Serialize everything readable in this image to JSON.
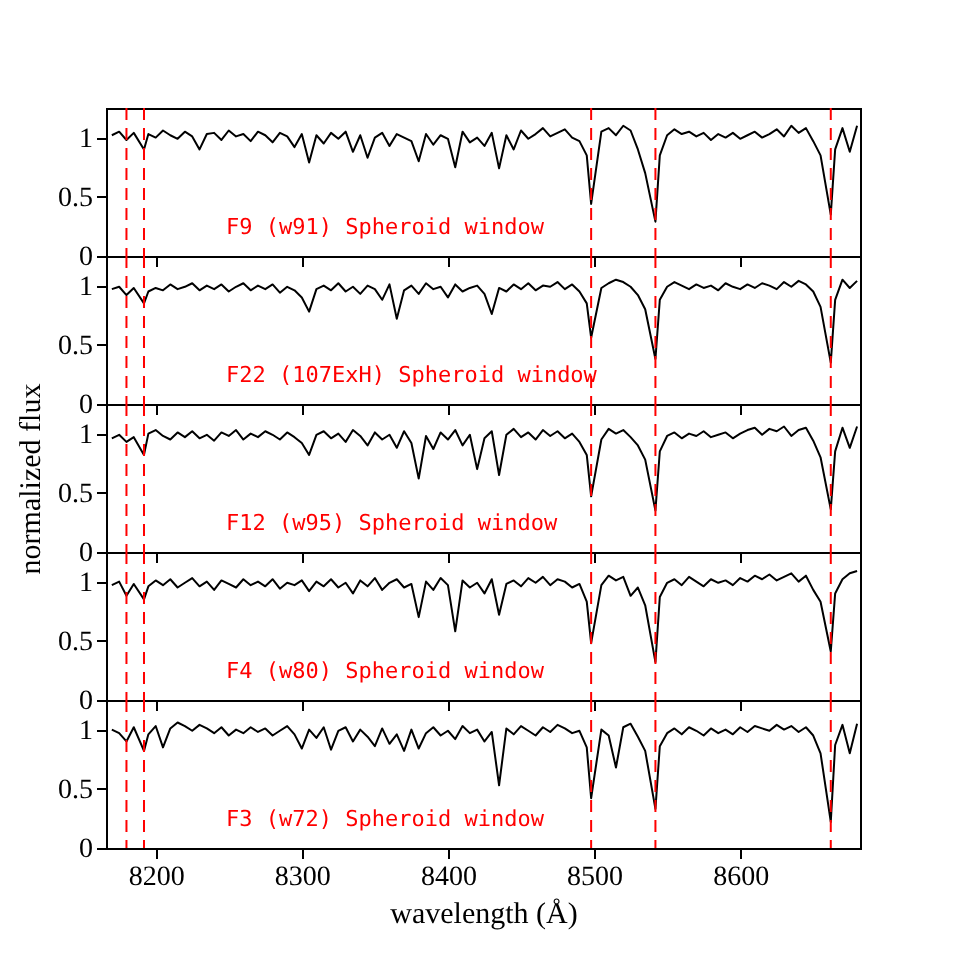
{
  "chart_data": [
    {
      "type": "line",
      "tick_labels": "y",
      "xlim": [
        8166,
        8682
      ],
      "xticks": [
        8200,
        8300,
        8400,
        8500,
        8600
      ],
      "ylim": [
        0,
        1.25
      ],
      "yticks": [
        0,
        0.5,
        1
      ],
      "x": [
        8170,
        8175,
        8180,
        8185,
        8192,
        8195,
        8200,
        8205,
        8210,
        8215,
        8220,
        8225,
        8230,
        8235,
        8240,
        8245,
        8250,
        8255,
        8260,
        8265,
        8270,
        8275,
        8280,
        8285,
        8290,
        8295,
        8300,
        8305,
        8310,
        8315,
        8320,
        8325,
        8330,
        8335,
        8340,
        8345,
        8350,
        8355,
        8360,
        8365,
        8370,
        8375,
        8380,
        8385,
        8390,
        8395,
        8400,
        8405,
        8410,
        8415,
        8420,
        8425,
        8430,
        8435,
        8440,
        8445,
        8450,
        8455,
        8460,
        8465,
        8470,
        8475,
        8480,
        8485,
        8490,
        8495,
        8498,
        8505,
        8510,
        8515,
        8520,
        8525,
        8530,
        8535,
        8542,
        8545,
        8550,
        8555,
        8560,
        8565,
        8570,
        8575,
        8580,
        8585,
        8590,
        8595,
        8600,
        8605,
        8610,
        8615,
        8620,
        8625,
        8630,
        8635,
        8640,
        8645,
        8650,
        8655,
        8662,
        8665,
        8670,
        8675,
        8680
      ],
      "series": [
        {
          "color": "#000000",
          "values": [
            1.02,
            1.05,
            0.98,
            1.04,
            0.9,
            1.03,
            1.0,
            1.06,
            1.02,
            0.99,
            1.05,
            1.01,
            0.9,
            1.03,
            1.04,
            0.98,
            1.06,
            1.01,
            1.03,
            0.97,
            1.05,
            1.02,
            0.96,
            1.04,
            1.01,
            0.92,
            1.03,
            0.79,
            1.02,
            0.95,
            1.04,
            0.99,
            1.05,
            0.88,
            1.02,
            0.83,
            1.0,
            1.04,
            0.93,
            1.03,
            1.0,
            0.97,
            0.8,
            1.03,
            0.94,
            1.02,
            0.99,
            0.75,
            1.05,
            0.96,
            1.0,
            0.93,
            1.04,
            0.74,
            1.02,
            0.9,
            1.06,
            0.99,
            1.03,
            1.08,
            1.01,
            1.04,
            1.07,
            1.0,
            0.97,
            0.85,
            0.44,
            1.05,
            1.08,
            1.02,
            1.1,
            1.06,
            0.9,
            0.7,
            0.29,
            0.85,
            1.02,
            1.07,
            1.03,
            1.05,
            1.01,
            1.04,
            0.98,
            1.03,
            1.0,
            1.04,
            0.99,
            1.02,
            1.05,
            1.0,
            1.03,
            1.07,
            1.01,
            1.1,
            1.04,
            1.08,
            0.97,
            0.85,
            0.35,
            0.9,
            1.08,
            0.88,
            1.1
          ]
        }
      ],
      "ref_lines": [
        {
          "axis": "x",
          "value": 8180,
          "color": "#ff0000",
          "line_style": "dashed"
        },
        {
          "axis": "x",
          "value": 8192,
          "color": "#ff0000",
          "line_style": "dashed"
        },
        {
          "axis": "x",
          "value": 8498,
          "color": "#ff0000",
          "line_style": "dashed"
        },
        {
          "axis": "x",
          "value": 8542,
          "color": "#ff0000",
          "line_style": "dashed"
        },
        {
          "axis": "x",
          "value": 8662,
          "color": "#ff0000",
          "line_style": "dashed"
        }
      ],
      "annotations": [
        "F9 (w91) Spheroid window"
      ]
    },
    {
      "type": "line",
      "tick_labels": "y",
      "xlim": [
        8166,
        8682
      ],
      "xticks": [
        8200,
        8300,
        8400,
        8500,
        8600
      ],
      "ylim": [
        0,
        1.25
      ],
      "yticks": [
        0,
        0.5,
        1
      ],
      "x": [
        8170,
        8175,
        8180,
        8185,
        8192,
        8195,
        8200,
        8205,
        8210,
        8215,
        8220,
        8225,
        8230,
        8235,
        8240,
        8245,
        8250,
        8255,
        8260,
        8265,
        8270,
        8275,
        8280,
        8285,
        8290,
        8295,
        8300,
        8305,
        8310,
        8315,
        8320,
        8325,
        8330,
        8335,
        8340,
        8345,
        8350,
        8355,
        8360,
        8365,
        8370,
        8375,
        8380,
        8385,
        8390,
        8395,
        8400,
        8405,
        8410,
        8415,
        8420,
        8425,
        8430,
        8435,
        8440,
        8445,
        8450,
        8455,
        8460,
        8465,
        8470,
        8475,
        8480,
        8485,
        8490,
        8495,
        8498,
        8505,
        8510,
        8515,
        8520,
        8525,
        8530,
        8535,
        8542,
        8545,
        8550,
        8555,
        8560,
        8565,
        8570,
        8575,
        8580,
        8585,
        8590,
        8595,
        8600,
        8605,
        8610,
        8615,
        8620,
        8625,
        8630,
        8635,
        8640,
        8645,
        8650,
        8655,
        8662,
        8665,
        8670,
        8675,
        8680
      ],
      "series": [
        {
          "color": "#000000",
          "values": [
            0.97,
            0.99,
            0.92,
            0.98,
            0.85,
            0.95,
            0.98,
            0.96,
            1.01,
            0.97,
            0.99,
            1.02,
            0.96,
            1.0,
            0.97,
            1.01,
            0.95,
            0.99,
            1.02,
            0.96,
            1.0,
            0.97,
            1.01,
            0.94,
            0.99,
            0.96,
            0.9,
            0.78,
            0.97,
            1.0,
            0.96,
            1.02,
            0.95,
            0.99,
            0.93,
            1.0,
            0.97,
            0.88,
            1.01,
            0.72,
            0.96,
            1.0,
            0.93,
            1.02,
            0.97,
            0.99,
            0.9,
            1.01,
            0.95,
            0.98,
            1.0,
            0.93,
            0.76,
            0.98,
            0.95,
            1.01,
            0.97,
            1.02,
            0.96,
            1.0,
            0.99,
            1.03,
            0.97,
            1.01,
            0.95,
            0.85,
            0.56,
            0.98,
            1.02,
            1.05,
            1.03,
            0.99,
            0.92,
            0.8,
            0.38,
            0.88,
            0.99,
            1.03,
            1.0,
            0.97,
            1.01,
            0.98,
            1.0,
            0.96,
            1.02,
            0.99,
            0.97,
            1.01,
            0.98,
            1.02,
            1.0,
            0.97,
            1.03,
            0.99,
            1.04,
            1.01,
            0.95,
            0.82,
            0.35,
            0.88,
            1.05,
            0.98,
            1.04
          ]
        }
      ],
      "ref_lines": [
        {
          "axis": "x",
          "value": 8180,
          "color": "#ff0000",
          "line_style": "dashed"
        },
        {
          "axis": "x",
          "value": 8192,
          "color": "#ff0000",
          "line_style": "dashed"
        },
        {
          "axis": "x",
          "value": 8498,
          "color": "#ff0000",
          "line_style": "dashed"
        },
        {
          "axis": "x",
          "value": 8542,
          "color": "#ff0000",
          "line_style": "dashed"
        },
        {
          "axis": "x",
          "value": 8662,
          "color": "#ff0000",
          "line_style": "dashed"
        }
      ],
      "annotations": [
        "F22 (107ExH) Spheroid window"
      ]
    },
    {
      "type": "line",
      "tick_labels": "y",
      "ylabel": "normalized flux",
      "xlim": [
        8166,
        8682
      ],
      "xticks": [
        8200,
        8300,
        8400,
        8500,
        8600
      ],
      "ylim": [
        0,
        1.25
      ],
      "yticks": [
        0,
        0.5,
        1
      ],
      "x": [
        8170,
        8175,
        8180,
        8185,
        8192,
        8195,
        8200,
        8205,
        8210,
        8215,
        8220,
        8225,
        8230,
        8235,
        8240,
        8245,
        8250,
        8255,
        8260,
        8265,
        8270,
        8275,
        8280,
        8285,
        8290,
        8295,
        8300,
        8305,
        8310,
        8315,
        8320,
        8325,
        8330,
        8335,
        8340,
        8345,
        8350,
        8355,
        8360,
        8365,
        8370,
        8375,
        8380,
        8385,
        8390,
        8395,
        8400,
        8405,
        8410,
        8415,
        8420,
        8425,
        8430,
        8435,
        8440,
        8445,
        8450,
        8455,
        8460,
        8465,
        8470,
        8475,
        8480,
        8485,
        8490,
        8495,
        8498,
        8505,
        8510,
        8515,
        8520,
        8525,
        8530,
        8535,
        8542,
        8545,
        8550,
        8555,
        8560,
        8565,
        8570,
        8575,
        8580,
        8585,
        8590,
        8595,
        8600,
        8605,
        8610,
        8615,
        8620,
        8625,
        8630,
        8635,
        8640,
        8645,
        8650,
        8655,
        8662,
        8665,
        8670,
        8675,
        8680
      ],
      "series": [
        {
          "color": "#000000",
          "values": [
            0.96,
            0.99,
            0.93,
            0.97,
            0.82,
            1.0,
            1.03,
            0.98,
            0.95,
            1.01,
            0.97,
            1.02,
            0.96,
            0.99,
            0.94,
            1.01,
            0.98,
            1.03,
            0.95,
            1.0,
            0.97,
            1.02,
            0.99,
            0.95,
            1.01,
            0.97,
            0.92,
            0.82,
            0.99,
            1.02,
            0.96,
            1.0,
            0.93,
            1.03,
            0.98,
            0.9,
            1.01,
            0.95,
            0.99,
            0.88,
            1.02,
            0.92,
            0.62,
            0.98,
            0.87,
            1.01,
            0.95,
            1.03,
            0.9,
            0.99,
            0.7,
            0.96,
            1.02,
            0.65,
            0.99,
            1.04,
            0.97,
            1.01,
            0.95,
            1.03,
            0.98,
            1.02,
            0.96,
            1.0,
            0.93,
            0.82,
            0.47,
            0.95,
            1.04,
            1.0,
            1.03,
            0.97,
            0.9,
            0.78,
            0.35,
            0.85,
            0.98,
            1.01,
            0.96,
            1.0,
            0.98,
            1.02,
            0.97,
            0.99,
            1.01,
            0.96,
            1.0,
            1.03,
            1.05,
            0.99,
            1.04,
            1.02,
            1.06,
            0.98,
            1.03,
            1.05,
            0.94,
            0.8,
            0.36,
            0.85,
            1.05,
            0.88,
            1.06
          ]
        }
      ],
      "ref_lines": [
        {
          "axis": "x",
          "value": 8180,
          "color": "#ff0000",
          "line_style": "dashed"
        },
        {
          "axis": "x",
          "value": 8192,
          "color": "#ff0000",
          "line_style": "dashed"
        },
        {
          "axis": "x",
          "value": 8498,
          "color": "#ff0000",
          "line_style": "dashed"
        },
        {
          "axis": "x",
          "value": 8542,
          "color": "#ff0000",
          "line_style": "dashed"
        },
        {
          "axis": "x",
          "value": 8662,
          "color": "#ff0000",
          "line_style": "dashed"
        }
      ],
      "annotations": [
        "F12 (w95) Spheroid window"
      ]
    },
    {
      "type": "line",
      "tick_labels": "y",
      "xlim": [
        8166,
        8682
      ],
      "xticks": [
        8200,
        8300,
        8400,
        8500,
        8600
      ],
      "ylim": [
        0,
        1.25
      ],
      "yticks": [
        0,
        0.5,
        1
      ],
      "x": [
        8170,
        8175,
        8180,
        8185,
        8192,
        8195,
        8200,
        8205,
        8210,
        8215,
        8220,
        8225,
        8230,
        8235,
        8240,
        8245,
        8250,
        8255,
        8260,
        8265,
        8270,
        8275,
        8280,
        8285,
        8290,
        8295,
        8300,
        8305,
        8310,
        8315,
        8320,
        8325,
        8330,
        8335,
        8340,
        8345,
        8350,
        8355,
        8360,
        8365,
        8370,
        8375,
        8380,
        8385,
        8390,
        8395,
        8400,
        8405,
        8410,
        8415,
        8420,
        8425,
        8430,
        8435,
        8440,
        8445,
        8450,
        8455,
        8460,
        8465,
        8470,
        8475,
        8480,
        8485,
        8490,
        8495,
        8498,
        8505,
        8510,
        8515,
        8520,
        8525,
        8530,
        8535,
        8542,
        8545,
        8550,
        8555,
        8560,
        8565,
        8570,
        8575,
        8580,
        8585,
        8590,
        8595,
        8600,
        8605,
        8610,
        8615,
        8620,
        8625,
        8630,
        8635,
        8640,
        8645,
        8650,
        8655,
        8662,
        8665,
        8670,
        8675,
        8680
      ],
      "series": [
        {
          "color": "#000000",
          "values": [
            0.97,
            1.0,
            0.88,
            0.98,
            0.85,
            0.96,
            1.01,
            0.97,
            1.02,
            0.95,
            0.99,
            1.03,
            0.96,
            1.0,
            0.93,
            1.01,
            0.98,
            0.95,
            1.02,
            0.97,
            1.0,
            0.96,
            1.02,
            0.94,
            0.99,
            0.97,
            1.01,
            0.92,
            1.0,
            0.96,
            1.02,
            0.95,
            0.99,
            0.9,
            1.01,
            0.96,
            1.03,
            0.93,
            0.99,
            1.02,
            0.95,
            0.98,
            0.7,
            1.0,
            0.93,
            1.03,
            0.97,
            0.58,
            1.01,
            0.95,
            0.99,
            0.9,
            1.02,
            0.72,
            0.98,
            1.01,
            0.96,
            1.03,
            0.99,
            1.04,
            0.97,
            1.02,
            1.0,
            0.95,
            0.98,
            0.83,
            0.48,
            0.97,
            1.05,
            1.01,
            1.04,
            0.88,
            0.95,
            0.8,
            0.32,
            0.87,
            0.99,
            1.02,
            0.97,
            1.04,
            1.0,
            0.96,
            1.02,
            0.99,
            1.01,
            0.97,
            1.03,
            1.0,
            1.05,
            1.02,
            1.06,
            1.01,
            1.04,
            1.07,
            1.0,
            1.05,
            0.93,
            0.83,
            0.41,
            0.9,
            1.02,
            1.07,
            1.09
          ]
        }
      ],
      "ref_lines": [
        {
          "axis": "x",
          "value": 8180,
          "color": "#ff0000",
          "line_style": "dashed"
        },
        {
          "axis": "x",
          "value": 8192,
          "color": "#ff0000",
          "line_style": "dashed"
        },
        {
          "axis": "x",
          "value": 8498,
          "color": "#ff0000",
          "line_style": "dashed"
        },
        {
          "axis": "x",
          "value": 8542,
          "color": "#ff0000",
          "line_style": "dashed"
        },
        {
          "axis": "x",
          "value": 8662,
          "color": "#ff0000",
          "line_style": "dashed"
        }
      ],
      "annotations": [
        "F4 (w80) Spheroid window"
      ]
    },
    {
      "type": "line",
      "xlabel": "wavelength (Å)",
      "xlim": [
        8166,
        8682
      ],
      "xticks": [
        8200,
        8300,
        8400,
        8500,
        8600
      ],
      "ylim": [
        0,
        1.25
      ],
      "yticks": [
        0,
        0.5,
        1
      ],
      "x": [
        8170,
        8175,
        8180,
        8185,
        8192,
        8195,
        8200,
        8205,
        8210,
        8215,
        8220,
        8225,
        8230,
        8235,
        8240,
        8245,
        8250,
        8255,
        8260,
        8265,
        8270,
        8275,
        8280,
        8285,
        8290,
        8295,
        8300,
        8305,
        8310,
        8315,
        8320,
        8325,
        8330,
        8335,
        8340,
        8345,
        8350,
        8355,
        8360,
        8365,
        8370,
        8375,
        8380,
        8385,
        8390,
        8395,
        8400,
        8405,
        8410,
        8415,
        8420,
        8425,
        8430,
        8435,
        8440,
        8445,
        8450,
        8455,
        8460,
        8465,
        8470,
        8475,
        8480,
        8485,
        8490,
        8495,
        8498,
        8505,
        8510,
        8515,
        8520,
        8525,
        8530,
        8535,
        8542,
        8545,
        8550,
        8555,
        8560,
        8565,
        8570,
        8575,
        8580,
        8585,
        8590,
        8595,
        8600,
        8605,
        8610,
        8615,
        8620,
        8625,
        8630,
        8635,
        8640,
        8645,
        8650,
        8655,
        8662,
        8665,
        8670,
        8675,
        8680
      ],
      "series": [
        {
          "color": "#000000",
          "values": [
            1.0,
            0.97,
            0.9,
            1.02,
            0.82,
            0.96,
            1.03,
            0.85,
            1.01,
            1.06,
            1.03,
            0.99,
            1.04,
            1.01,
            0.97,
            1.02,
            0.95,
            1.0,
            0.97,
            1.02,
            0.98,
            1.01,
            0.95,
            0.99,
            1.03,
            0.96,
            0.84,
            1.0,
            0.93,
            1.02,
            0.83,
            0.99,
            1.02,
            0.9,
            1.0,
            0.94,
            0.86,
            1.01,
            0.88,
            0.96,
            0.82,
            1.0,
            0.84,
            0.97,
            1.02,
            0.95,
            0.99,
            0.92,
            1.03,
            0.97,
            1.0,
            0.9,
            0.98,
            0.53,
            1.01,
            0.96,
            1.03,
            0.99,
            0.95,
            1.02,
            0.98,
            1.04,
            1.01,
            0.97,
            0.99,
            0.85,
            0.42,
            1.0,
            0.95,
            0.68,
            1.02,
            1.05,
            0.94,
            0.82,
            0.33,
            0.86,
            0.97,
            1.01,
            0.96,
            1.02,
            0.99,
            0.95,
            1.01,
            0.97,
            1.0,
            0.96,
            1.02,
            0.98,
            1.03,
            1.01,
            0.99,
            1.04,
            1.0,
            1.03,
            0.98,
            1.02,
            0.95,
            0.8,
            0.22,
            0.87,
            1.04,
            0.8,
            1.05
          ]
        }
      ],
      "ref_lines": [
        {
          "axis": "x",
          "value": 8180,
          "color": "#ff0000",
          "line_style": "dashed"
        },
        {
          "axis": "x",
          "value": 8192,
          "color": "#ff0000",
          "line_style": "dashed"
        },
        {
          "axis": "x",
          "value": 8498,
          "color": "#ff0000",
          "line_style": "dashed"
        },
        {
          "axis": "x",
          "value": 8542,
          "color": "#ff0000",
          "line_style": "dashed"
        },
        {
          "axis": "x",
          "value": 8662,
          "color": "#ff0000",
          "line_style": "dashed"
        }
      ],
      "annotations": [
        "F3 (w72) Spheroid window"
      ]
    }
  ]
}
